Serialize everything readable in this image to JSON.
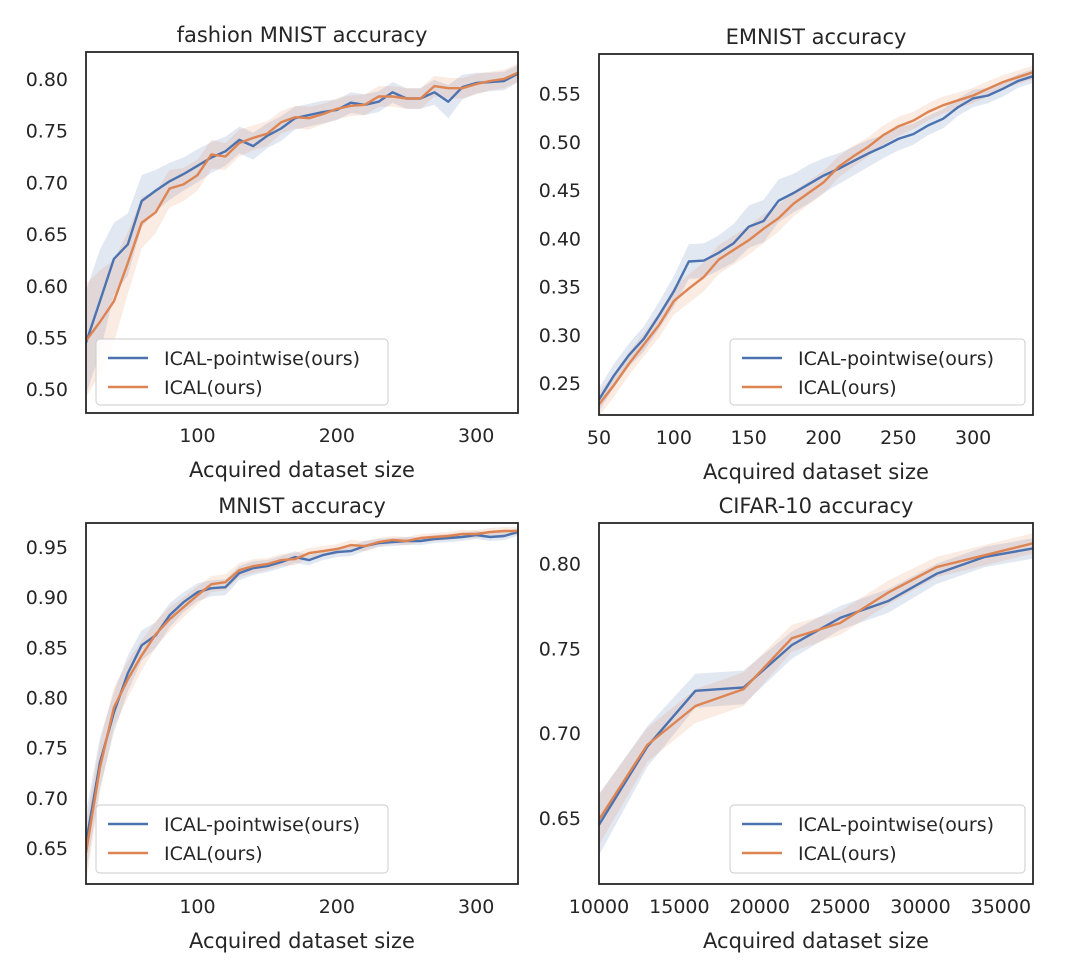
{
  "colors": {
    "pointwise": "#4c72b0",
    "full": "#dd8452",
    "frame": "#262626",
    "text": "#262626",
    "legend_border": "#cccccc"
  },
  "chart_data": [
    {
      "type": "line",
      "title": "fashion MNIST accuracy",
      "xlabel": "Acquired dataset size",
      "ylabel": "",
      "xlim": [
        20,
        330
      ],
      "ylim": [
        0.477,
        0.826
      ],
      "xticks": [
        100,
        200,
        300
      ],
      "xtick_labels": [
        "100",
        "200",
        "300"
      ],
      "yticks": [
        0.5,
        0.55,
        0.6,
        0.65,
        0.7,
        0.75,
        0.8
      ],
      "ytick_labels": [
        "0.50",
        "0.55",
        "0.60",
        "0.65",
        "0.70",
        "0.75",
        "0.80"
      ],
      "grid": false,
      "legend": "bottom-left",
      "series": [
        {
          "name": "ICAL-pointwise(ours)",
          "color": "#4c72b0",
          "x": [
            20,
            30,
            40,
            50,
            60,
            70,
            80,
            90,
            100,
            110,
            120,
            130,
            140,
            150,
            160,
            170,
            180,
            190,
            200,
            210,
            220,
            230,
            240,
            250,
            260,
            270,
            280,
            290,
            300,
            310,
            320,
            330
          ],
          "values": [
            0.545,
            0.585,
            0.626,
            0.64,
            0.682,
            0.692,
            0.701,
            0.708,
            0.716,
            0.724,
            0.73,
            0.741,
            0.735,
            0.745,
            0.752,
            0.762,
            0.765,
            0.768,
            0.77,
            0.777,
            0.775,
            0.778,
            0.787,
            0.781,
            0.781,
            0.787,
            0.778,
            0.792,
            0.796,
            0.797,
            0.798,
            0.805
          ],
          "band": [
            0.05,
            0.05,
            0.035,
            0.03,
            0.025,
            0.02,
            0.018,
            0.016,
            0.016,
            0.015,
            0.014,
            0.013,
            0.013,
            0.012,
            0.012,
            0.011,
            0.011,
            0.011,
            0.01,
            0.01,
            0.01,
            0.01,
            0.01,
            0.01,
            0.01,
            0.012,
            0.016,
            0.012,
            0.01,
            0.009,
            0.009,
            0.008
          ]
        },
        {
          "name": "ICAL(ours)",
          "color": "#dd8452",
          "x": [
            20,
            30,
            40,
            50,
            60,
            70,
            80,
            90,
            100,
            110,
            120,
            130,
            140,
            150,
            160,
            170,
            180,
            190,
            200,
            210,
            220,
            230,
            240,
            250,
            260,
            270,
            280,
            290,
            300,
            310,
            320,
            330
          ],
          "values": [
            0.547,
            0.565,
            0.585,
            0.622,
            0.661,
            0.671,
            0.694,
            0.698,
            0.707,
            0.727,
            0.725,
            0.738,
            0.743,
            0.747,
            0.758,
            0.763,
            0.762,
            0.766,
            0.771,
            0.774,
            0.775,
            0.783,
            0.783,
            0.781,
            0.781,
            0.793,
            0.791,
            0.791,
            0.795,
            0.798,
            0.8,
            0.806
          ],
          "band": [
            0.055,
            0.05,
            0.04,
            0.03,
            0.025,
            0.02,
            0.018,
            0.016,
            0.015,
            0.014,
            0.013,
            0.013,
            0.012,
            0.012,
            0.011,
            0.011,
            0.011,
            0.01,
            0.01,
            0.01,
            0.01,
            0.01,
            0.01,
            0.01,
            0.01,
            0.01,
            0.01,
            0.01,
            0.01,
            0.009,
            0.009,
            0.009
          ]
        }
      ]
    },
    {
      "type": "line",
      "title": "EMNIST accuracy",
      "xlabel": "Acquired dataset size",
      "ylabel": "",
      "xlim": [
        50,
        340
      ],
      "ylim": [
        0.217,
        0.591
      ],
      "xticks": [
        50,
        100,
        150,
        200,
        250,
        300
      ],
      "xtick_labels": [
        "50",
        "100",
        "150",
        "200",
        "250",
        "300"
      ],
      "yticks": [
        0.25,
        0.3,
        0.35,
        0.4,
        0.45,
        0.5,
        0.55
      ],
      "ytick_labels": [
        "0.25",
        "0.30",
        "0.35",
        "0.40",
        "0.45",
        "0.50",
        "0.55"
      ],
      "grid": false,
      "legend": "bottom-right",
      "series": [
        {
          "name": "ICAL-pointwise(ours)",
          "color": "#4c72b0",
          "x": [
            50,
            60,
            70,
            80,
            90,
            100,
            110,
            120,
            130,
            140,
            150,
            160,
            170,
            180,
            190,
            200,
            210,
            220,
            230,
            240,
            250,
            260,
            270,
            280,
            290,
            300,
            310,
            320,
            330,
            340
          ],
          "values": [
            0.233,
            0.258,
            0.279,
            0.296,
            0.32,
            0.345,
            0.376,
            0.377,
            0.385,
            0.395,
            0.412,
            0.418,
            0.439,
            0.447,
            0.456,
            0.465,
            0.472,
            0.48,
            0.488,
            0.495,
            0.503,
            0.508,
            0.517,
            0.524,
            0.536,
            0.545,
            0.548,
            0.555,
            0.563,
            0.568
          ],
          "band": [
            0.012,
            0.012,
            0.012,
            0.013,
            0.014,
            0.016,
            0.018,
            0.018,
            0.018,
            0.02,
            0.022,
            0.022,
            0.022,
            0.02,
            0.02,
            0.018,
            0.016,
            0.015,
            0.014,
            0.012,
            0.012,
            0.011,
            0.01,
            0.01,
            0.009,
            0.009,
            0.008,
            0.008,
            0.007,
            0.007
          ]
        },
        {
          "name": "ICAL(ours)",
          "color": "#dd8452",
          "x": [
            50,
            60,
            70,
            80,
            90,
            100,
            110,
            120,
            130,
            140,
            150,
            160,
            170,
            180,
            190,
            200,
            210,
            220,
            230,
            240,
            250,
            260,
            270,
            280,
            290,
            300,
            310,
            320,
            330,
            340
          ],
          "values": [
            0.228,
            0.248,
            0.27,
            0.29,
            0.31,
            0.335,
            0.348,
            0.36,
            0.378,
            0.388,
            0.398,
            0.41,
            0.421,
            0.436,
            0.447,
            0.458,
            0.474,
            0.485,
            0.495,
            0.507,
            0.516,
            0.522,
            0.531,
            0.538,
            0.543,
            0.548,
            0.555,
            0.562,
            0.567,
            0.572
          ],
          "band": [
            0.012,
            0.012,
            0.012,
            0.012,
            0.013,
            0.014,
            0.015,
            0.015,
            0.015,
            0.015,
            0.015,
            0.015,
            0.014,
            0.013,
            0.012,
            0.012,
            0.011,
            0.011,
            0.01,
            0.01,
            0.01,
            0.009,
            0.009,
            0.009,
            0.008,
            0.008,
            0.008,
            0.007,
            0.007,
            0.007
          ]
        }
      ]
    },
    {
      "type": "line",
      "title": "MNIST accuracy",
      "xlabel": "Acquired dataset size",
      "ylabel": "",
      "xlim": [
        20,
        330
      ],
      "ylim": [
        0.614,
        0.974
      ],
      "xticks": [
        100,
        200,
        300
      ],
      "xtick_labels": [
        "100",
        "200",
        "300"
      ],
      "yticks": [
        0.65,
        0.7,
        0.75,
        0.8,
        0.85,
        0.9,
        0.95
      ],
      "ytick_labels": [
        "0.65",
        "0.70",
        "0.75",
        "0.80",
        "0.85",
        "0.90",
        "0.95"
      ],
      "grid": false,
      "legend": "bottom-left",
      "series": [
        {
          "name": "ICAL-pointwise(ours)",
          "color": "#4c72b0",
          "x": [
            20,
            30,
            40,
            50,
            60,
            70,
            80,
            90,
            100,
            110,
            120,
            130,
            140,
            150,
            160,
            170,
            180,
            190,
            200,
            210,
            220,
            230,
            240,
            250,
            260,
            270,
            280,
            290,
            300,
            310,
            320,
            330
          ],
          "values": [
            0.655,
            0.735,
            0.785,
            0.824,
            0.852,
            0.862,
            0.882,
            0.895,
            0.905,
            0.909,
            0.91,
            0.924,
            0.929,
            0.931,
            0.935,
            0.94,
            0.937,
            0.942,
            0.945,
            0.946,
            0.951,
            0.954,
            0.955,
            0.956,
            0.956,
            0.958,
            0.959,
            0.96,
            0.962,
            0.96,
            0.961,
            0.965
          ],
          "band": [
            0.03,
            0.025,
            0.02,
            0.018,
            0.015,
            0.013,
            0.012,
            0.01,
            0.009,
            0.008,
            0.008,
            0.007,
            0.007,
            0.006,
            0.006,
            0.006,
            0.005,
            0.005,
            0.005,
            0.005,
            0.005,
            0.004,
            0.004,
            0.004,
            0.004,
            0.004,
            0.004,
            0.004,
            0.004,
            0.004,
            0.004,
            0.004
          ]
        },
        {
          "name": "ICAL(ours)",
          "color": "#dd8452",
          "x": [
            20,
            30,
            40,
            50,
            60,
            70,
            80,
            90,
            100,
            110,
            120,
            130,
            140,
            150,
            160,
            170,
            180,
            190,
            200,
            210,
            220,
            230,
            240,
            250,
            260,
            270,
            280,
            290,
            300,
            310,
            320,
            330
          ],
          "values": [
            0.645,
            0.73,
            0.79,
            0.818,
            0.842,
            0.863,
            0.878,
            0.89,
            0.902,
            0.913,
            0.915,
            0.927,
            0.931,
            0.933,
            0.937,
            0.938,
            0.944,
            0.946,
            0.948,
            0.952,
            0.951,
            0.955,
            0.957,
            0.956,
            0.959,
            0.96,
            0.961,
            0.963,
            0.963,
            0.965,
            0.966,
            0.966
          ],
          "band": [
            0.03,
            0.025,
            0.02,
            0.018,
            0.015,
            0.013,
            0.012,
            0.01,
            0.009,
            0.008,
            0.008,
            0.007,
            0.007,
            0.006,
            0.006,
            0.006,
            0.005,
            0.005,
            0.005,
            0.005,
            0.005,
            0.004,
            0.004,
            0.004,
            0.004,
            0.004,
            0.004,
            0.004,
            0.004,
            0.004,
            0.004,
            0.004
          ]
        }
      ]
    },
    {
      "type": "line",
      "title": "CIFAR-10 accuracy",
      "xlabel": "Acquired dataset size",
      "ylabel": "",
      "xlim": [
        10000,
        37000
      ],
      "ylim": [
        0.611,
        0.824
      ],
      "xticks": [
        10000,
        15000,
        20000,
        25000,
        30000,
        35000
      ],
      "xtick_labels": [
        "10000",
        "15000",
        "20000",
        "25000",
        "30000",
        "35000"
      ],
      "yticks": [
        0.65,
        0.7,
        0.75,
        0.8
      ],
      "ytick_labels": [
        "0.65",
        "0.70",
        "0.75",
        "0.80"
      ],
      "grid": false,
      "legend": "bottom-right",
      "series": [
        {
          "name": "ICAL-pointwise(ours)",
          "color": "#4c72b0",
          "x": [
            10000,
            13000,
            16000,
            19000,
            22000,
            25000,
            28000,
            31000,
            34000,
            37000
          ],
          "values": [
            0.646,
            0.692,
            0.725,
            0.727,
            0.752,
            0.768,
            0.778,
            0.794,
            0.804,
            0.809
          ],
          "band": [
            0.018,
            0.012,
            0.01,
            0.01,
            0.008,
            0.007,
            0.007,
            0.006,
            0.006,
            0.006
          ]
        },
        {
          "name": "ICAL(ours)",
          "color": "#dd8452",
          "x": [
            10000,
            13000,
            16000,
            19000,
            22000,
            25000,
            28000,
            31000,
            34000,
            37000
          ],
          "values": [
            0.649,
            0.693,
            0.716,
            0.726,
            0.756,
            0.765,
            0.783,
            0.798,
            0.805,
            0.812
          ],
          "band": [
            0.015,
            0.01,
            0.01,
            0.01,
            0.008,
            0.007,
            0.007,
            0.006,
            0.006,
            0.006
          ]
        }
      ]
    }
  ]
}
